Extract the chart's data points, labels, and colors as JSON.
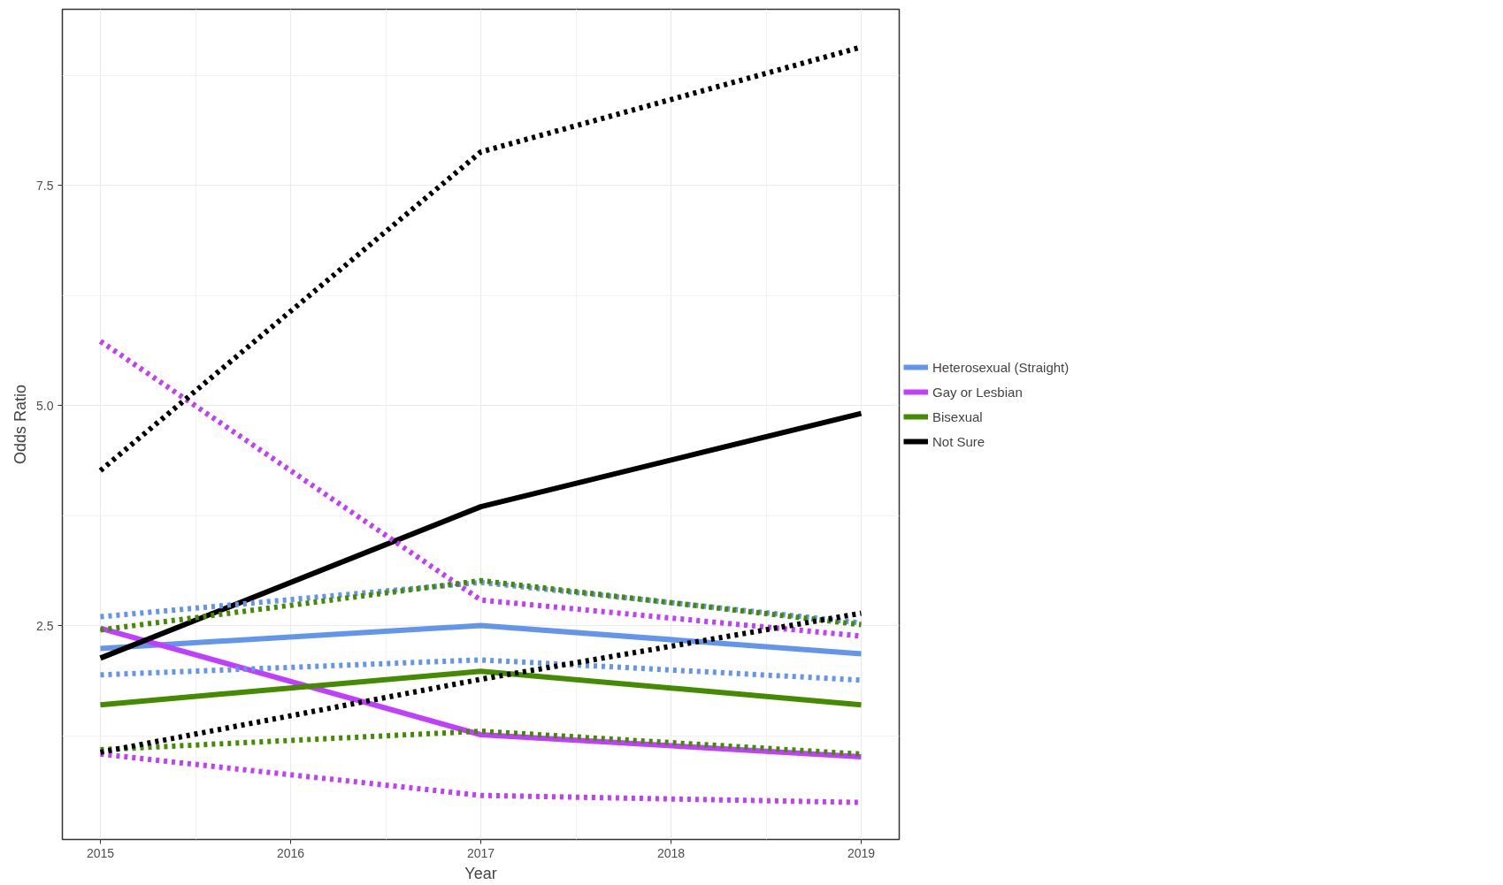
{
  "chart_data": {
    "type": "line",
    "xlabel": "Year",
    "ylabel": "Odds Ratio",
    "x": [
      2015,
      2017,
      2019
    ],
    "xlim": [
      2014.8,
      2019.2
    ],
    "xticks": [
      2015,
      2016,
      2017,
      2018,
      2019
    ],
    "ylim": [
      0.07,
      9.5
    ],
    "yticks": [
      {
        "value": 2.5,
        "label": "2.5"
      },
      {
        "value": 5,
        "label": "5.0"
      },
      {
        "value": 7.5,
        "label": "7.5"
      }
    ],
    "grid": true,
    "legend": "right",
    "series": [
      {
        "name": "Heterosexual (Straight)",
        "color": "#6495ed",
        "values": [
          2.24,
          2.5,
          2.18
        ]
      },
      {
        "name": "Gay or Lesbian",
        "color": "#bf3eff",
        "values": [
          2.47,
          1.26,
          1.01
        ]
      },
      {
        "name": "Bisexual",
        "color": "#458b00",
        "values": [
          1.6,
          1.98,
          1.6
        ]
      },
      {
        "name": "Not Sure",
        "color": "#000000",
        "values": [
          2.13,
          3.85,
          4.91
        ]
      },
      {
        "color": "#6495ed",
        "line_style": "dotted",
        "values": [
          1.94,
          2.11,
          1.88
        ]
      },
      {
        "color": "#6495ed",
        "line_style": "dotted",
        "values": [
          2.6,
          2.99,
          2.53
        ]
      },
      {
        "color": "#bf3eff",
        "line_style": "dotted",
        "values": [
          1.04,
          0.57,
          0.49
        ]
      },
      {
        "color": "#bf3eff",
        "line_style": "dotted",
        "values": [
          5.73,
          2.79,
          2.38
        ]
      },
      {
        "color": "#458b00",
        "line_style": "dotted",
        "values": [
          1.09,
          1.3,
          1.04
        ]
      },
      {
        "color": "#458b00",
        "line_style": "dotted",
        "values": [
          2.45,
          3.01,
          2.51
        ]
      },
      {
        "color": "#000000",
        "line_style": "dotted",
        "values": [
          1.06,
          1.89,
          2.64
        ]
      },
      {
        "color": "#000000",
        "line_style": "dotted",
        "values": [
          4.26,
          7.88,
          9.07
        ]
      }
    ]
  }
}
